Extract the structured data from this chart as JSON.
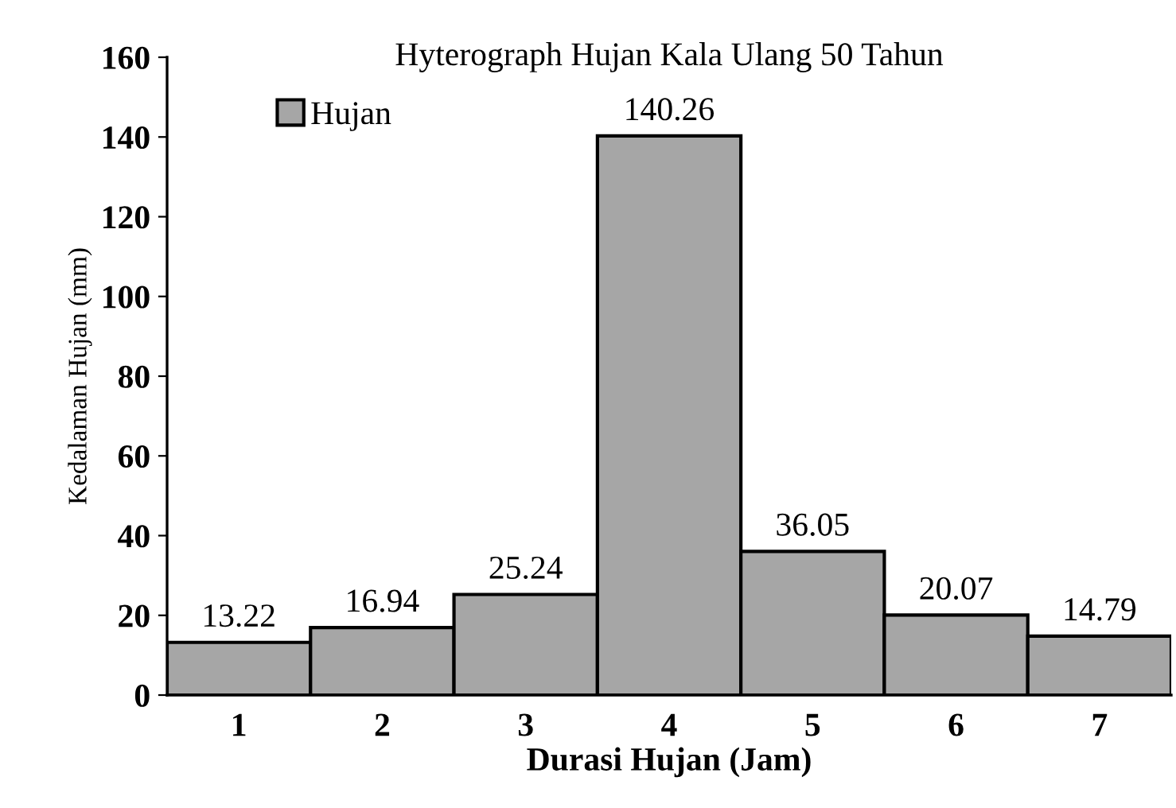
{
  "chart_data": {
    "type": "bar",
    "title": "Hyterograph Hujan Kala Ulang 50 Tahun",
    "xlabel": "Durasi Hujan (Jam)",
    "ylabel": "Kedalaman Hujan (mm)",
    "categories": [
      "1",
      "2",
      "3",
      "4",
      "5",
      "6",
      "7"
    ],
    "series": [
      {
        "name": "Hujan",
        "color": "#a6a6a6",
        "values": [
          13.22,
          16.94,
          25.24,
          140.26,
          36.05,
          20.07,
          14.79
        ]
      }
    ],
    "ylim": [
      0,
      160
    ],
    "yticks": [
      0,
      20,
      40,
      60,
      80,
      100,
      120,
      140,
      160
    ],
    "data_labels": true,
    "legend": "top left",
    "grid": false
  }
}
